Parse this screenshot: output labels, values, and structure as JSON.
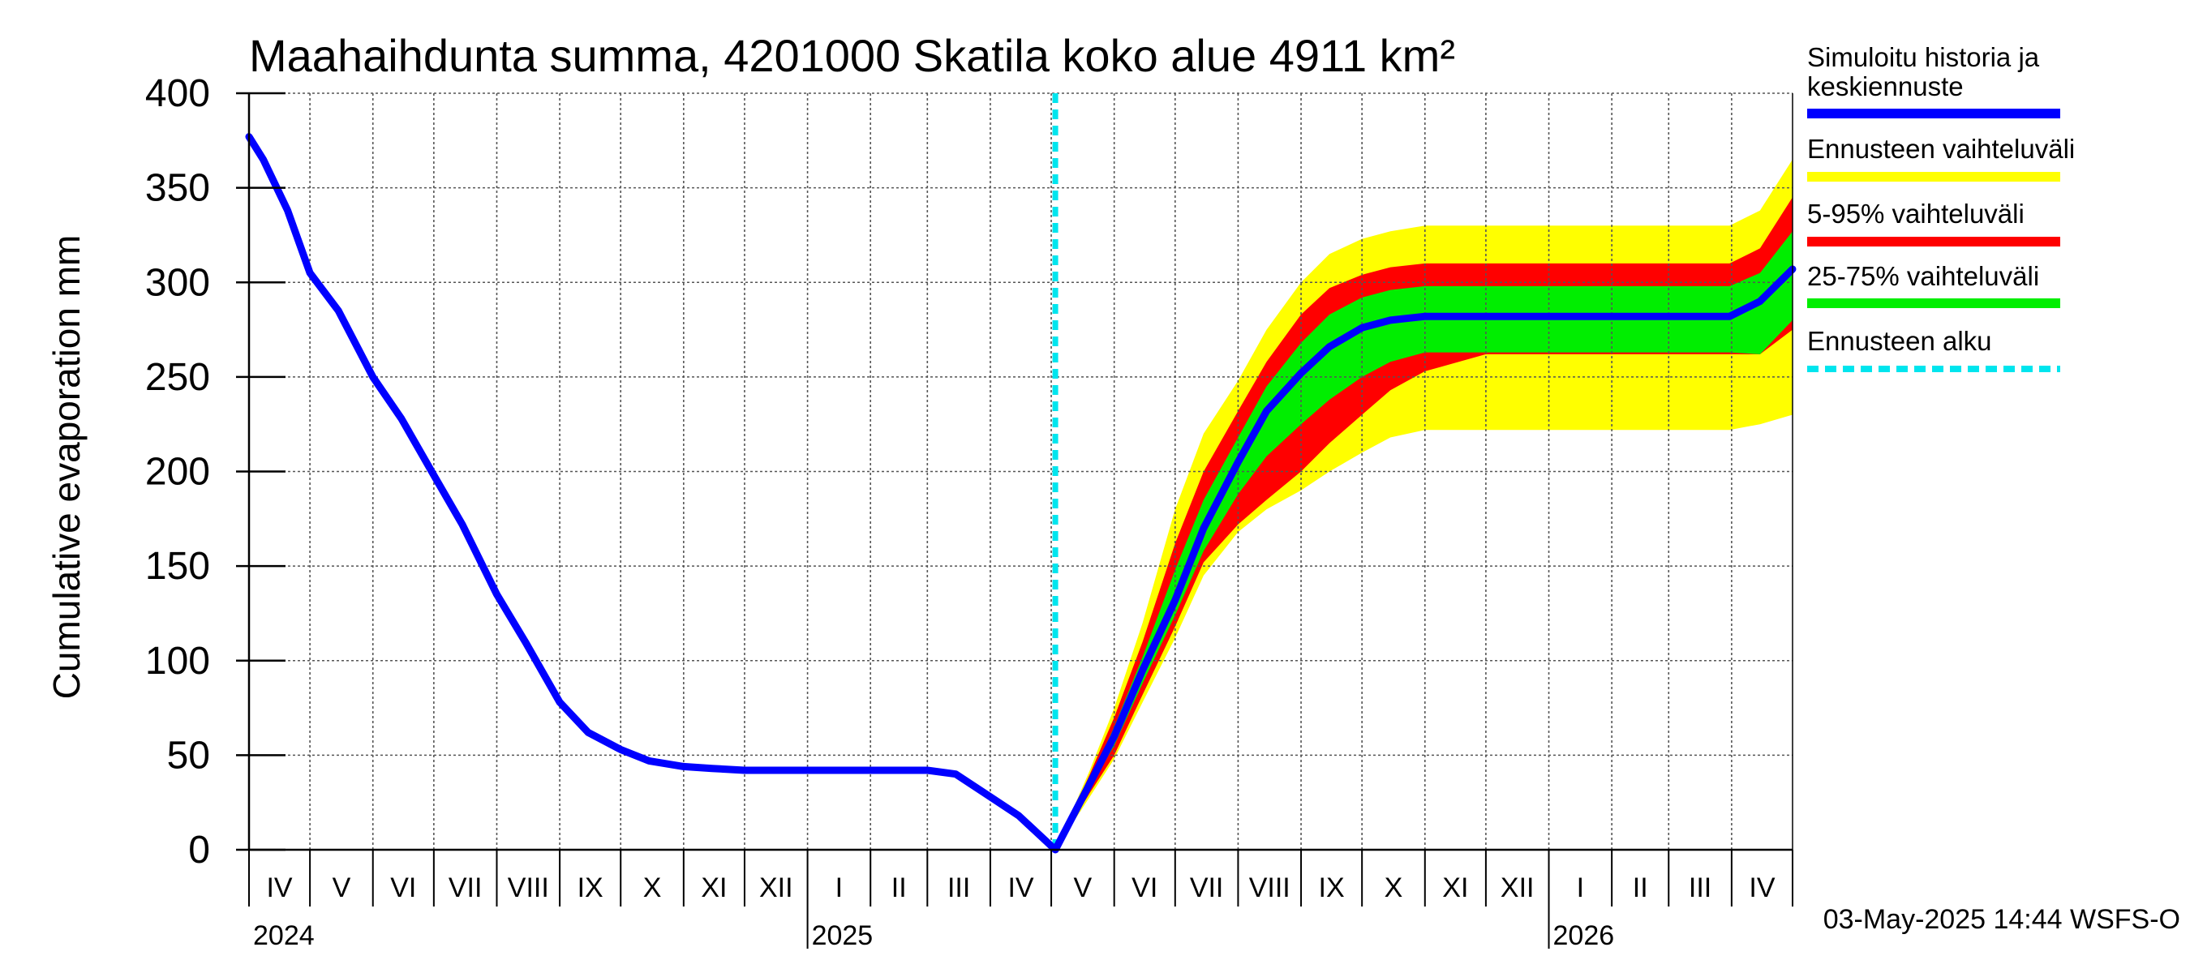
{
  "chart_data": {
    "type": "area",
    "title": "Maahaihdunta summa, 4201000 Skatila koko alue 4911 km²",
    "ylabel": "Cumulative evaporation   mm",
    "ylim": [
      0,
      400
    ],
    "yticks": [
      0,
      50,
      100,
      150,
      200,
      250,
      300,
      350,
      400
    ],
    "x_start": "2024-04-01",
    "x_end": "2026-05-01",
    "forecast_start": "2025-05-03",
    "months": [
      "IV",
      "V",
      "VI",
      "VII",
      "VIII",
      "IX",
      "X",
      "XI",
      "XII",
      "I",
      "II",
      "III",
      "IV",
      "V",
      "VI",
      "VII",
      "VIII",
      "IX",
      "X",
      "XI",
      "XII",
      "I",
      "II",
      "III",
      "IV"
    ],
    "years": [
      "2024",
      "2025",
      "2026"
    ],
    "series": [
      {
        "name": "Simuloitu historia ja keskiennuste",
        "color": "#0000ff",
        "x": [
          "2024-04-01",
          "2024-04-08",
          "2024-04-20",
          "2024-05-01",
          "2024-05-15",
          "2024-06-01",
          "2024-06-15",
          "2024-07-01",
          "2024-07-15",
          "2024-08-01",
          "2024-08-15",
          "2024-09-01",
          "2024-09-15",
          "2024-10-01",
          "2024-10-15",
          "2024-11-01",
          "2024-11-15",
          "2024-12-01",
          "2025-01-01",
          "2025-02-01",
          "2025-03-01",
          "2025-03-15",
          "2025-04-01",
          "2025-04-15",
          "2025-05-03",
          "2025-05-20",
          "2025-06-01",
          "2025-06-15",
          "2025-07-01",
          "2025-07-15",
          "2025-08-01",
          "2025-08-15",
          "2025-09-01",
          "2025-09-15",
          "2025-10-01",
          "2025-10-15",
          "2025-11-01",
          "2025-12-01",
          "2026-01-01",
          "2026-03-01",
          "2026-03-31",
          "2026-04-15",
          "2026-05-01"
        ],
        "values": [
          377,
          365,
          338,
          305,
          285,
          250,
          228,
          198,
          172,
          135,
          110,
          78,
          62,
          53,
          47,
          44,
          43,
          42,
          42,
          42,
          42,
          40,
          28,
          18,
          0,
          35,
          60,
          95,
          132,
          170,
          205,
          232,
          252,
          266,
          276,
          280,
          282,
          282,
          282,
          282,
          282,
          290,
          307
        ]
      }
    ],
    "bands": [
      {
        "name": "Ennusteen vaihteluväli",
        "color": "#ffff00",
        "x": [
          "2025-05-03",
          "2025-05-20",
          "2025-06-01",
          "2025-06-15",
          "2025-07-01",
          "2025-07-15",
          "2025-08-01",
          "2025-08-15",
          "2025-09-01",
          "2025-09-15",
          "2025-10-01",
          "2025-10-15",
          "2025-11-01",
          "2025-12-01",
          "2026-01-01",
          "2026-03-01",
          "2026-03-31",
          "2026-04-15",
          "2026-05-01"
        ],
        "upper": [
          0,
          42,
          75,
          120,
          180,
          220,
          248,
          275,
          300,
          315,
          323,
          327,
          330,
          330,
          330,
          330,
          330,
          338,
          365
        ],
        "lower": [
          0,
          28,
          48,
          78,
          112,
          145,
          168,
          180,
          190,
          200,
          210,
          218,
          222,
          222,
          222,
          222,
          222,
          225,
          230
        ]
      },
      {
        "name": "5-95% vaihteluväli",
        "color": "#ff0000",
        "x": [
          "2025-05-03",
          "2025-05-20",
          "2025-06-01",
          "2025-06-15",
          "2025-07-01",
          "2025-07-15",
          "2025-08-01",
          "2025-08-15",
          "2025-09-01",
          "2025-09-15",
          "2025-10-01",
          "2025-10-15",
          "2025-11-01",
          "2025-12-01",
          "2026-01-01",
          "2026-03-01",
          "2026-03-31",
          "2026-04-15",
          "2026-05-01"
        ],
        "upper": [
          0,
          40,
          70,
          110,
          162,
          200,
          232,
          258,
          283,
          297,
          304,
          308,
          310,
          310,
          310,
          310,
          310,
          318,
          345
        ],
        "lower": [
          0,
          30,
          50,
          82,
          118,
          152,
          172,
          185,
          200,
          215,
          230,
          243,
          253,
          262,
          262,
          262,
          262,
          262,
          275
        ]
      },
      {
        "name": "25-75% vaihteluväli",
        "color": "#00ee00",
        "x": [
          "2025-05-03",
          "2025-05-20",
          "2025-06-01",
          "2025-06-15",
          "2025-07-01",
          "2025-07-15",
          "2025-08-01",
          "2025-08-15",
          "2025-09-01",
          "2025-09-15",
          "2025-10-01",
          "2025-10-15",
          "2025-11-01",
          "2025-12-01",
          "2026-01-01",
          "2026-03-01",
          "2026-03-31",
          "2026-04-15",
          "2026-05-01"
        ],
        "upper": [
          0,
          37,
          65,
          102,
          148,
          185,
          218,
          245,
          268,
          283,
          292,
          296,
          298,
          298,
          298,
          298,
          298,
          305,
          327
        ],
        "lower": [
          0,
          33,
          55,
          88,
          124,
          158,
          188,
          208,
          225,
          238,
          250,
          258,
          263,
          263,
          263,
          263,
          263,
          262,
          280
        ]
      }
    ],
    "legend": [
      {
        "label": "Simuloitu historia ja keskiennuste",
        "color": "#0000ff",
        "style": "solid"
      },
      {
        "label": "Ennusteen vaihteluväli",
        "color": "#ffff00",
        "style": "solid"
      },
      {
        "label": "5-95% vaihteluväli",
        "color": "#ff0000",
        "style": "solid"
      },
      {
        "label": "25-75% vaihteluväli",
        "color": "#00ee00",
        "style": "solid"
      },
      {
        "label": "Ennusteen alku",
        "color": "#00e5ee",
        "style": "dashed"
      }
    ],
    "footer": "03-May-2025 14:44 WSFS-O"
  }
}
